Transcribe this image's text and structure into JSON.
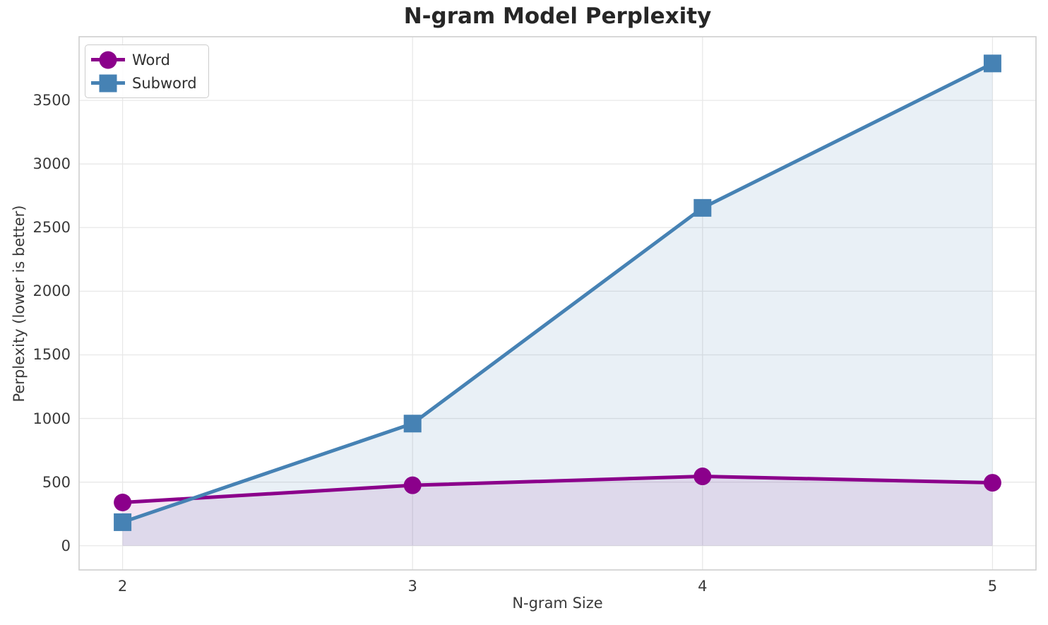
{
  "figure": {
    "title": "N-gram Model Perplexity",
    "xlabel": "N-gram Size",
    "ylabel": "Perplexity (lower is better)"
  },
  "chart_data": {
    "type": "line",
    "title": "N-gram Model Perplexity",
    "xlabel": "N-gram Size",
    "ylabel": "Perplexity (lower is better)",
    "x": [
      2,
      3,
      4,
      5
    ],
    "series": [
      {
        "name": "Word",
        "values": [
          340,
          475,
          545,
          495
        ],
        "color": "#8B008B",
        "marker": "circle",
        "fill_alpha": 0.1
      },
      {
        "name": "Subword",
        "values": [
          185,
          960,
          2655,
          3790
        ],
        "color": "#4682B4",
        "marker": "square",
        "fill_alpha": 0.12
      }
    ],
    "fill_to": 0,
    "xlim": [
      1.85,
      5.15
    ],
    "ylim": [
      -190,
      4000
    ],
    "xticks": [
      2,
      3,
      4,
      5
    ],
    "yticks": [
      0,
      500,
      1000,
      1500,
      2000,
      2500,
      3000,
      3500
    ],
    "grid": true,
    "legend": {
      "position": "upper left"
    },
    "style": {
      "grid_color": "#e8e8e8",
      "spine_color": "#cfcfcf",
      "background": "#ffffff",
      "line_width": 5,
      "marker_size": 25
    }
  }
}
